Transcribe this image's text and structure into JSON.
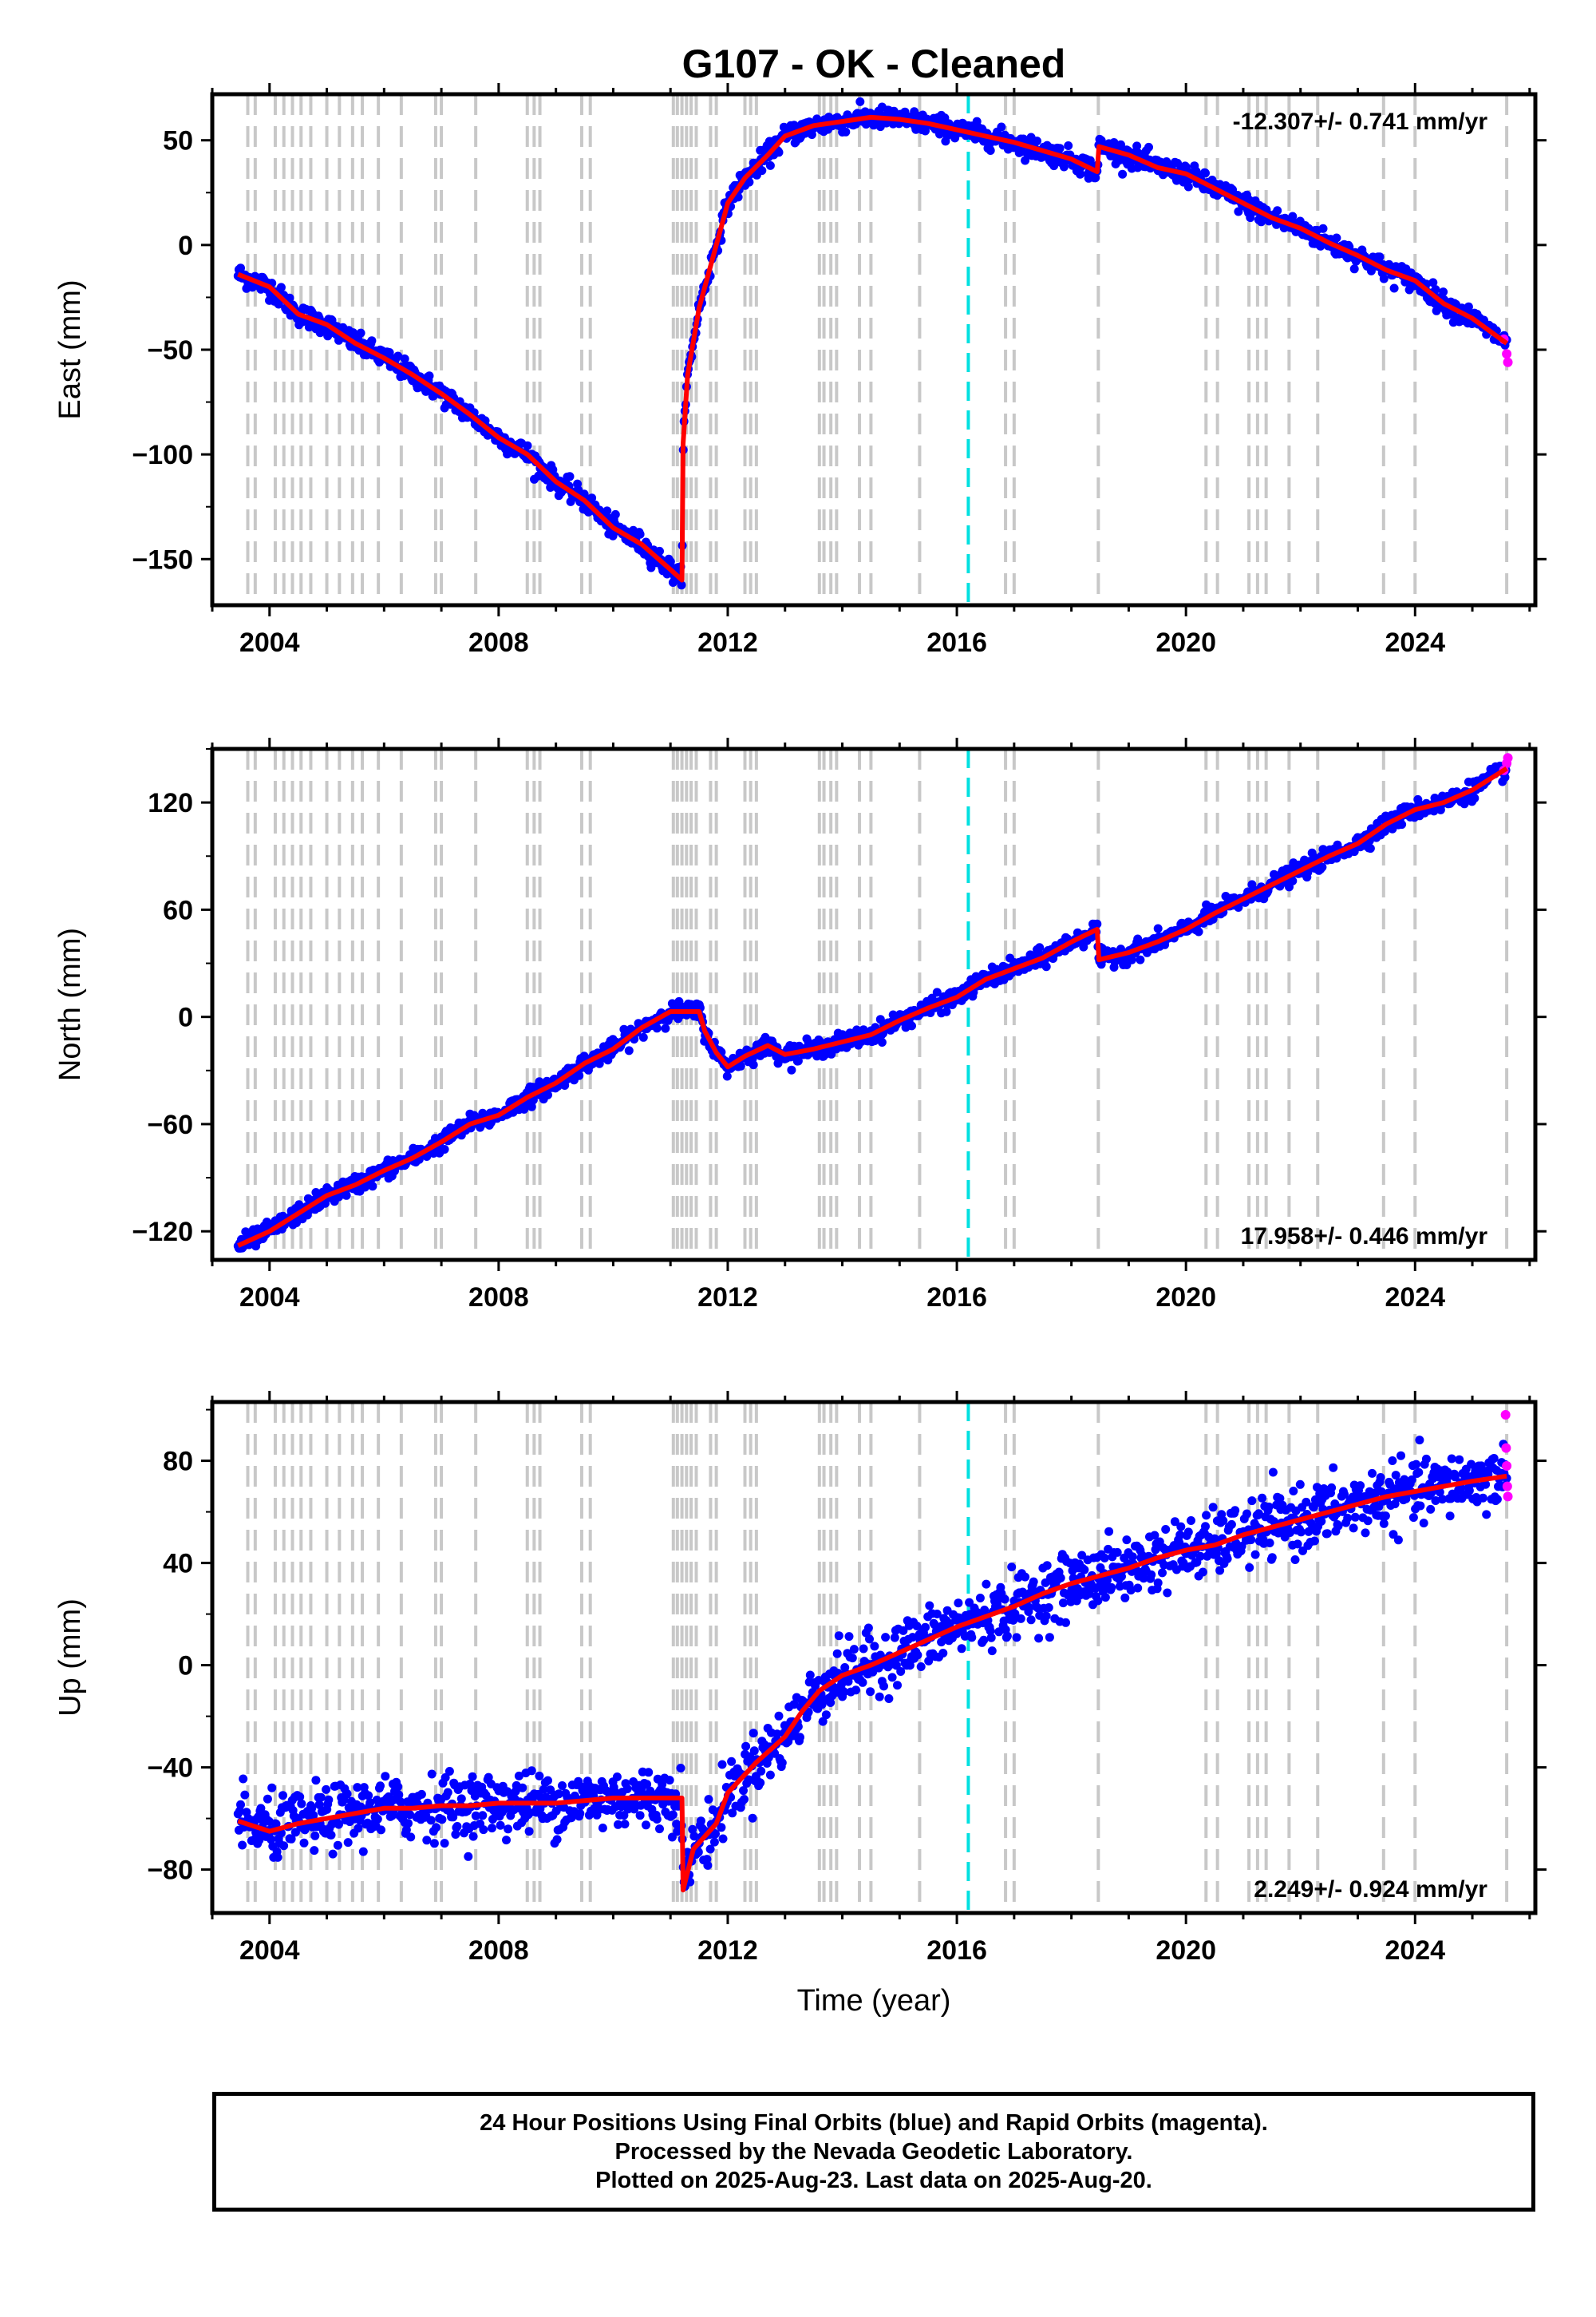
{
  "title": "G107  - OK - Cleaned",
  "colors": {
    "final_orbits": "#0000ff",
    "rapid_orbits": "#ff00ff",
    "model_fit": "#ff0000",
    "equipment_change_lines": "#c8c8c8",
    "highlight_line": "#00e0e0"
  },
  "footer": {
    "line1": "24 Hour Positions Using Final Orbits (blue) and Rapid Orbits (magenta).",
    "line2": "Processed by the Nevada Geodetic Laboratory.",
    "line3": "Plotted on 2025-Aug-23. Last data on 2025-Aug-20."
  },
  "chart_data": [
    {
      "type": "scatter",
      "component": "East",
      "ylabel": "East (mm)",
      "xlabel": "",
      "xlim": [
        2003.0,
        2026.1
      ],
      "ylim": [
        -172,
        72
      ],
      "yticks": [
        50,
        0,
        -50,
        -100,
        -150
      ],
      "ytick_labels": [
        "50",
        "0",
        "−50",
        "−100",
        "−150"
      ],
      "xticks": [
        2004,
        2008,
        2012,
        2016,
        2020,
        2024
      ],
      "xtick_labels": [
        "2004",
        "2008",
        "2012",
        "2016",
        "2020",
        "2024"
      ],
      "rate": "-12.307+/- 0.741 mm/yr",
      "rate_position": "top-right",
      "trend_points": [
        [
          2003.45,
          -14
        ],
        [
          2004.0,
          -20
        ],
        [
          2004.5,
          -33
        ],
        [
          2005.0,
          -38
        ],
        [
          2005.5,
          -47
        ],
        [
          2006.0,
          -54
        ],
        [
          2006.5,
          -62
        ],
        [
          2007.0,
          -71
        ],
        [
          2007.5,
          -81
        ],
        [
          2008.0,
          -92
        ],
        [
          2008.5,
          -100
        ],
        [
          2009.0,
          -113
        ],
        [
          2009.5,
          -122
        ],
        [
          2010.0,
          -135
        ],
        [
          2010.5,
          -143
        ],
        [
          2011.0,
          -155
        ],
        [
          2011.2,
          -160
        ],
        [
          2011.22,
          -95
        ],
        [
          2011.3,
          -62
        ],
        [
          2011.5,
          -30
        ],
        [
          2011.8,
          0
        ],
        [
          2012.0,
          20
        ],
        [
          2012.3,
          32
        ],
        [
          2012.7,
          43
        ],
        [
          2013.0,
          52
        ],
        [
          2013.5,
          57
        ],
        [
          2014.0,
          59
        ],
        [
          2014.5,
          61
        ],
        [
          2015.0,
          60
        ],
        [
          2015.5,
          58
        ],
        [
          2016.0,
          55
        ],
        [
          2016.5,
          52
        ],
        [
          2017.0,
          49
        ],
        [
          2017.5,
          45
        ],
        [
          2018.0,
          41
        ],
        [
          2018.45,
          35
        ],
        [
          2018.48,
          47
        ],
        [
          2019.0,
          43
        ],
        [
          2019.5,
          37
        ],
        [
          2020.0,
          34
        ],
        [
          2020.5,
          27
        ],
        [
          2021.0,
          20
        ],
        [
          2021.5,
          13
        ],
        [
          2022.0,
          8
        ],
        [
          2022.5,
          1
        ],
        [
          2023.0,
          -5
        ],
        [
          2023.5,
          -12
        ],
        [
          2024.0,
          -17
        ],
        [
          2024.5,
          -28
        ],
        [
          2025.0,
          -35
        ],
        [
          2025.6,
          -47
        ]
      ],
      "rapid_points": [
        [
          2025.55,
          -45
        ],
        [
          2025.6,
          -52
        ],
        [
          2025.62,
          -56
        ]
      ],
      "scatter_noise_mm": 2.5
    },
    {
      "type": "scatter",
      "component": "North",
      "ylabel": "North (mm)",
      "xlabel": "",
      "xlim": [
        2003.0,
        2026.1
      ],
      "ylim": [
        -136,
        150
      ],
      "yticks": [
        120,
        60,
        0,
        -60,
        -120
      ],
      "ytick_labels": [
        "120",
        "60",
        "0",
        "−60",
        "−120"
      ],
      "xticks": [
        2004,
        2008,
        2012,
        2016,
        2020,
        2024
      ],
      "xtick_labels": [
        "2004",
        "2008",
        "2012",
        "2016",
        "2020",
        "2024"
      ],
      "rate": "17.958+/- 0.446 mm/yr",
      "rate_position": "bottom-right",
      "trend_points": [
        [
          2003.45,
          -128
        ],
        [
          2004.0,
          -120
        ],
        [
          2004.5,
          -110
        ],
        [
          2005.0,
          -100
        ],
        [
          2005.5,
          -94
        ],
        [
          2006.0,
          -86
        ],
        [
          2006.5,
          -79
        ],
        [
          2007.0,
          -70
        ],
        [
          2007.5,
          -60
        ],
        [
          2008.0,
          -55
        ],
        [
          2008.5,
          -45
        ],
        [
          2009.0,
          -37
        ],
        [
          2009.5,
          -26
        ],
        [
          2010.0,
          -18
        ],
        [
          2010.5,
          -6
        ],
        [
          2011.0,
          3
        ],
        [
          2011.5,
          3
        ],
        [
          2011.6,
          -8
        ],
        [
          2011.8,
          -20
        ],
        [
          2012.0,
          -28
        ],
        [
          2012.3,
          -22
        ],
        [
          2012.7,
          -16
        ],
        [
          2013.0,
          -21
        ],
        [
          2013.5,
          -18
        ],
        [
          2014.0,
          -14
        ],
        [
          2014.5,
          -10
        ],
        [
          2015.0,
          -2
        ],
        [
          2015.5,
          5
        ],
        [
          2016.0,
          11
        ],
        [
          2016.5,
          21
        ],
        [
          2017.0,
          27
        ],
        [
          2017.5,
          33
        ],
        [
          2018.0,
          42
        ],
        [
          2018.45,
          49
        ],
        [
          2018.48,
          32
        ],
        [
          2019.0,
          36
        ],
        [
          2019.5,
          42
        ],
        [
          2020.0,
          49
        ],
        [
          2020.5,
          58
        ],
        [
          2021.0,
          66
        ],
        [
          2021.5,
          74
        ],
        [
          2022.0,
          82
        ],
        [
          2022.5,
          90
        ],
        [
          2023.0,
          97
        ],
        [
          2023.5,
          108
        ],
        [
          2024.0,
          116
        ],
        [
          2024.5,
          120
        ],
        [
          2025.0,
          127
        ],
        [
          2025.6,
          139
        ]
      ],
      "rapid_points": [
        [
          2025.55,
          138
        ],
        [
          2025.6,
          142
        ],
        [
          2025.62,
          145
        ]
      ],
      "scatter_noise_mm": 2.5
    },
    {
      "type": "scatter",
      "component": "Up",
      "ylabel": "Up (mm)",
      "xlabel": "Time (year)",
      "xlim": [
        2003.0,
        2026.1
      ],
      "ylim": [
        -97,
        103
      ],
      "yticks": [
        80,
        40,
        0,
        -40,
        -80
      ],
      "ytick_labels": [
        "80",
        "40",
        "0",
        "−40",
        "−80"
      ],
      "xticks": [
        2004,
        2008,
        2012,
        2016,
        2020,
        2024
      ],
      "xtick_labels": [
        "2004",
        "2008",
        "2012",
        "2016",
        "2020",
        "2024"
      ],
      "rate": "2.249+/- 0.924 mm/yr",
      "rate_position": "bottom-right",
      "trend_points": [
        [
          2003.45,
          -61
        ],
        [
          2004.0,
          -65
        ],
        [
          2004.5,
          -62
        ],
        [
          2005.0,
          -60
        ],
        [
          2005.5,
          -58
        ],
        [
          2006.0,
          -56
        ],
        [
          2006.5,
          -56
        ],
        [
          2007.0,
          -55
        ],
        [
          2007.5,
          -55
        ],
        [
          2008.0,
          -54
        ],
        [
          2008.5,
          -54
        ],
        [
          2009.0,
          -54
        ],
        [
          2009.5,
          -53
        ],
        [
          2010.0,
          -52
        ],
        [
          2010.5,
          -52
        ],
        [
          2011.0,
          -52
        ],
        [
          2011.2,
          -52
        ],
        [
          2011.22,
          -88
        ],
        [
          2011.4,
          -72
        ],
        [
          2011.8,
          -62
        ],
        [
          2012.0,
          -50
        ],
        [
          2012.5,
          -38
        ],
        [
          2013.0,
          -28
        ],
        [
          2013.3,
          -18
        ],
        [
          2013.6,
          -10
        ],
        [
          2014.0,
          -4
        ],
        [
          2014.5,
          0
        ],
        [
          2015.0,
          5
        ],
        [
          2015.5,
          10
        ],
        [
          2016.0,
          15
        ],
        [
          2016.5,
          19
        ],
        [
          2017.0,
          23
        ],
        [
          2017.5,
          28
        ],
        [
          2018.0,
          32
        ],
        [
          2018.5,
          35
        ],
        [
          2019.0,
          38
        ],
        [
          2019.5,
          42
        ],
        [
          2020.0,
          45
        ],
        [
          2020.5,
          47
        ],
        [
          2021.0,
          51
        ],
        [
          2021.5,
          54
        ],
        [
          2022.0,
          57
        ],
        [
          2022.5,
          60
        ],
        [
          2023.0,
          63
        ],
        [
          2023.5,
          66
        ],
        [
          2024.0,
          68
        ],
        [
          2024.5,
          70
        ],
        [
          2025.0,
          72
        ],
        [
          2025.6,
          74
        ]
      ],
      "rapid_points": [
        [
          2025.58,
          98
        ],
        [
          2025.59,
          85
        ],
        [
          2025.6,
          78
        ],
        [
          2025.61,
          70
        ],
        [
          2025.62,
          66
        ]
      ],
      "scatter_noise_mm": 6
    }
  ],
  "equipment_change_years": [
    2003.62,
    2003.75,
    2004.1,
    2004.25,
    2004.4,
    2004.55,
    2004.72,
    2005.0,
    2005.22,
    2005.45,
    2005.62,
    2005.9,
    2006.3,
    2006.9,
    2007.0,
    2007.6,
    2008.5,
    2008.62,
    2008.72,
    2009.45,
    2009.6,
    2011.05,
    2011.12,
    2011.2,
    2011.28,
    2011.36,
    2011.45,
    2011.7,
    2011.8,
    2012.3,
    2012.4,
    2012.5,
    2013.6,
    2013.68,
    2013.8,
    2013.9,
    2014.3,
    2014.5,
    2015.35,
    2016.85,
    2017.0,
    2018.47,
    2020.35,
    2020.55,
    2021.1,
    2021.25,
    2021.4,
    2021.8,
    2022.3,
    2023.45,
    2024.0,
    2025.6
  ],
  "highlight_year": 2016.2
}
